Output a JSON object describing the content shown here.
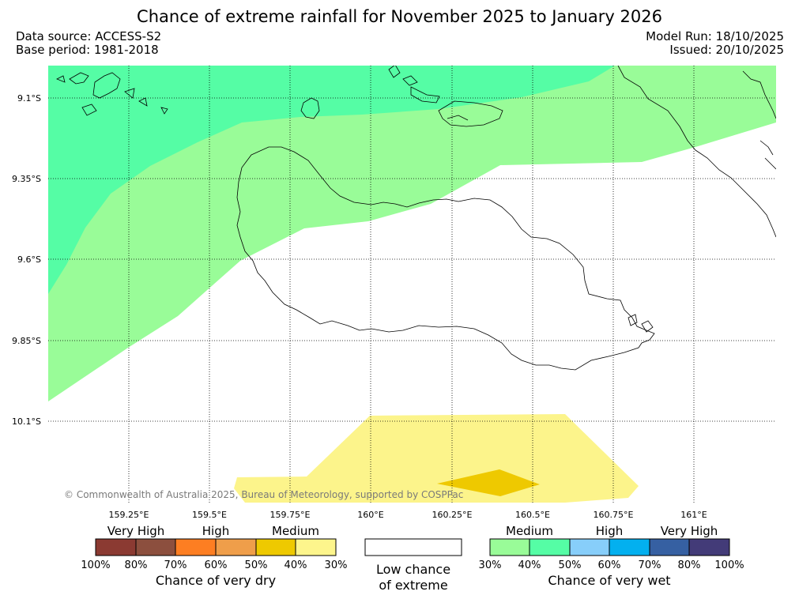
{
  "title": "Chance of extreme rainfall for November 2025 to January 2026",
  "data_source": "Data source: ACCESS-S2",
  "base_period": "Base period: 1981-2018",
  "model_run": "Model Run: 18/10/2025",
  "issued": "Issued: 20/10/2025",
  "copyright": "© Commonwealth of Australia 2025, Bureau of Meteorology, supported by COSPPac",
  "map": {
    "lat_ticks": [
      "9.1°S",
      "9.35°S",
      "9.6°S",
      "9.85°S",
      "10.1°S"
    ],
    "lon_ticks": [
      "159.25°E",
      "159.5°E",
      "159.75°E",
      "160°E",
      "160.25°E",
      "160.5°E",
      "160.75°E",
      "161°E"
    ]
  },
  "legend": {
    "dry": {
      "headers": [
        "Very High",
        "High",
        "Medium"
      ],
      "percent_labels": [
        "100%",
        "80%",
        "70%",
        "60%",
        "50%",
        "40%",
        "30%"
      ],
      "colors": [
        "#8b3a32",
        "#8c4f3e",
        "#fd7e22",
        "#ef9e4a",
        "#eec900",
        "#fdf58c"
      ],
      "caption": "Chance of very dry"
    },
    "neutral": {
      "caption_line1": "Low chance",
      "caption_line2": "of extreme"
    },
    "wet": {
      "headers": [
        "Medium",
        "High",
        "Very High"
      ],
      "percent_labels": [
        "30%",
        "40%",
        "50%",
        "60%",
        "70%",
        "80%",
        "100%"
      ],
      "colors": [
        "#99fc98",
        "#55fda5",
        "#87cefa",
        "#03b0ef",
        "#3660a2",
        "#433b78"
      ],
      "caption": "Chance of very wet"
    }
  },
  "colors": {
    "wet_40_50": "#55fda5",
    "wet_30_40": "#99fc98",
    "dry_30_40": "#fcf48b",
    "dry_40_50": "#eec900",
    "coastline": "#000000",
    "grid": "#000000"
  }
}
